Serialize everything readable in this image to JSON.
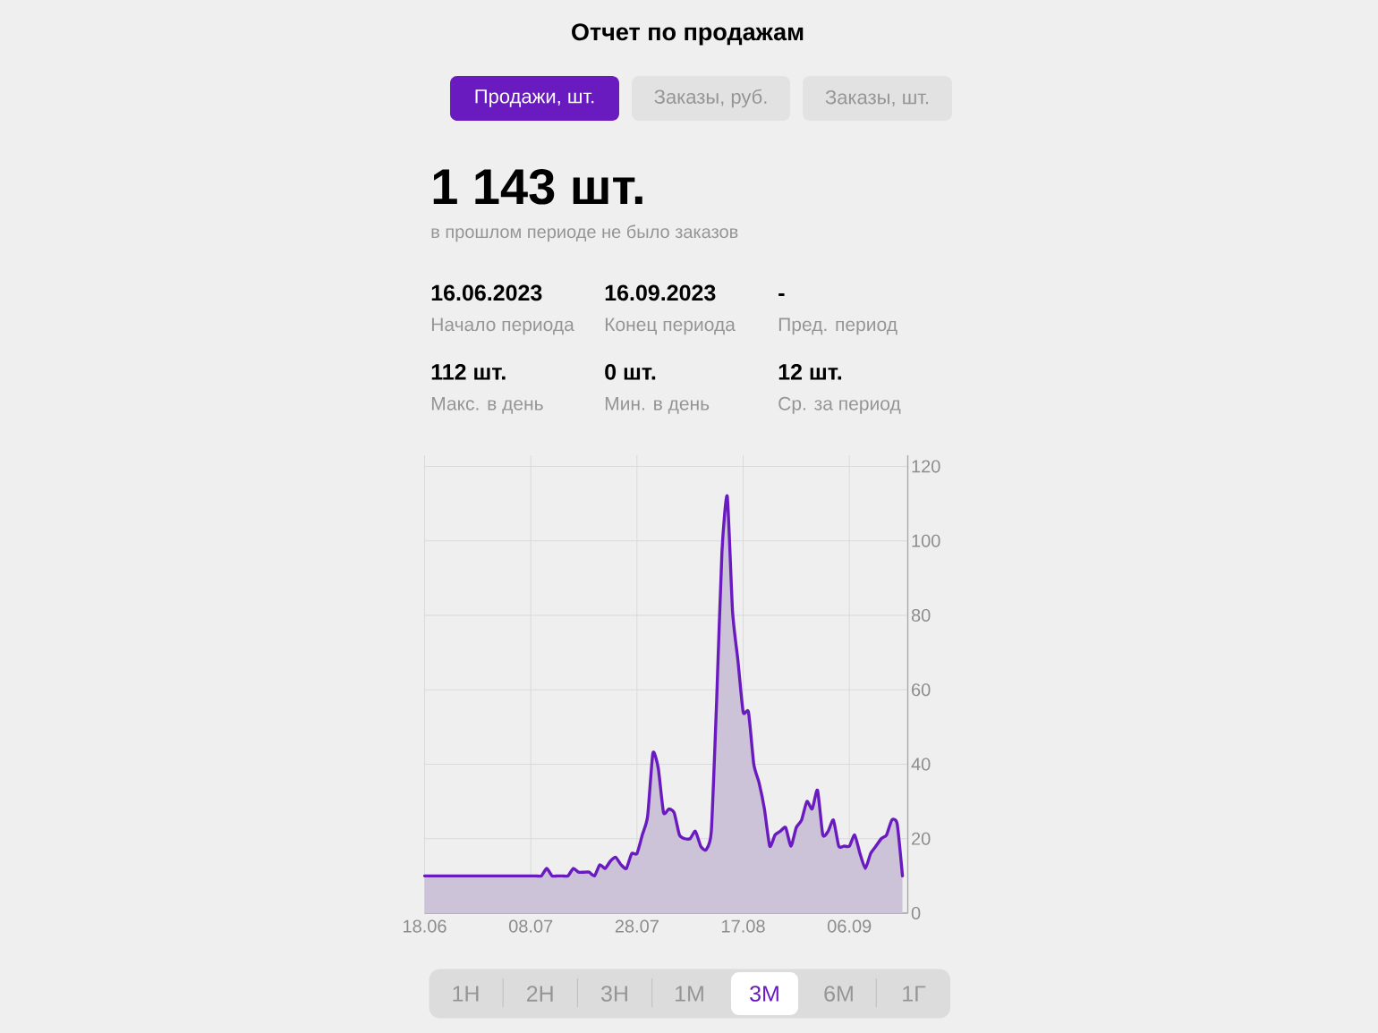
{
  "chart_data": {
    "type": "area",
    "title": "Отчет по продажам",
    "annotations": [
      "Продажи, шт.",
      "Заказы, руб.",
      "Заказы, шт.",
      "1 143 шт.",
      "в прошлом периоде не было заказов",
      "16.06.2023",
      "Начало периода",
      "16.09.2023",
      "Конец периода",
      "-",
      "Пред. период",
      "112 шт.",
      "Макс. в день",
      "0 шт.",
      "Мин. в день",
      "12 шт.",
      "Ср. за период",
      "1Н",
      "2Н",
      "3Н",
      "1М",
      "3М",
      "6М",
      "1Г"
    ],
    "x": [
      "2023-06-18",
      "2023-06-19",
      "2023-06-20",
      "2023-06-21",
      "2023-06-22",
      "2023-06-23",
      "2023-06-24",
      "2023-06-25",
      "2023-06-26",
      "2023-06-27",
      "2023-06-28",
      "2023-06-29",
      "2023-06-30",
      "2023-07-01",
      "2023-07-02",
      "2023-07-03",
      "2023-07-04",
      "2023-07-05",
      "2023-07-06",
      "2023-07-07",
      "2023-07-08",
      "2023-07-09",
      "2023-07-10",
      "2023-07-11",
      "2023-07-12",
      "2023-07-13",
      "2023-07-14",
      "2023-07-15",
      "2023-07-16",
      "2023-07-17",
      "2023-07-18",
      "2023-07-19",
      "2023-07-20",
      "2023-07-21",
      "2023-07-22",
      "2023-07-23",
      "2023-07-24",
      "2023-07-25",
      "2023-07-26",
      "2023-07-27",
      "2023-07-28",
      "2023-07-29",
      "2023-07-30",
      "2023-07-31",
      "2023-08-01",
      "2023-08-02",
      "2023-08-03",
      "2023-08-04",
      "2023-08-05",
      "2023-08-06",
      "2023-08-07",
      "2023-08-08",
      "2023-08-09",
      "2023-08-10",
      "2023-08-11",
      "2023-08-12",
      "2023-08-13",
      "2023-08-14",
      "2023-08-15",
      "2023-08-16",
      "2023-08-17",
      "2023-08-18",
      "2023-08-19",
      "2023-08-20",
      "2023-08-21",
      "2023-08-22",
      "2023-08-23",
      "2023-08-24",
      "2023-08-25",
      "2023-08-26",
      "2023-08-27",
      "2023-08-28",
      "2023-08-29",
      "2023-08-30",
      "2023-08-31",
      "2023-09-01",
      "2023-09-02",
      "2023-09-03",
      "2023-09-04",
      "2023-09-05",
      "2023-09-06",
      "2023-09-07",
      "2023-09-08",
      "2023-09-09",
      "2023-09-10",
      "2023-09-11",
      "2023-09-12",
      "2023-09-13",
      "2023-09-14",
      "2023-09-15",
      "2023-09-16"
    ],
    "values": [
      10,
      10,
      10,
      10,
      10,
      10,
      10,
      10,
      10,
      10,
      10,
      10,
      10,
      10,
      10,
      10,
      10,
      10,
      10,
      10,
      10,
      10,
      10,
      12,
      10,
      10,
      10,
      10,
      12,
      11,
      11,
      11,
      10,
      13,
      12,
      14,
      15,
      13,
      12,
      16,
      16,
      21,
      26,
      43,
      39,
      27,
      28,
      27,
      21,
      20,
      20,
      22,
      18,
      17,
      22,
      57,
      97,
      112,
      81,
      68,
      54,
      54,
      40,
      35,
      28,
      18,
      21,
      22,
      23,
      18,
      23,
      25,
      30,
      28,
      33,
      21,
      22,
      25,
      18,
      18,
      18,
      21,
      16,
      12,
      16,
      18,
      20,
      21,
      25,
      24,
      10
    ],
    "color": "#6a1bbf",
    "xlim": [
      "2023-06-18",
      "2023-09-17"
    ],
    "xticks": [
      {
        "value": "2023-06-18",
        "label": "18.06"
      },
      {
        "value": "2023-07-08",
        "label": "08.07"
      },
      {
        "value": "2023-07-28",
        "label": "28.07"
      },
      {
        "value": "2023-08-17",
        "label": "17.08"
      },
      {
        "value": "2023-09-06",
        "label": "06.09"
      }
    ],
    "ylim": [
      0,
      123
    ],
    "yticks": [
      0,
      20,
      40,
      60,
      80,
      100,
      120
    ],
    "grid": true
  }
}
